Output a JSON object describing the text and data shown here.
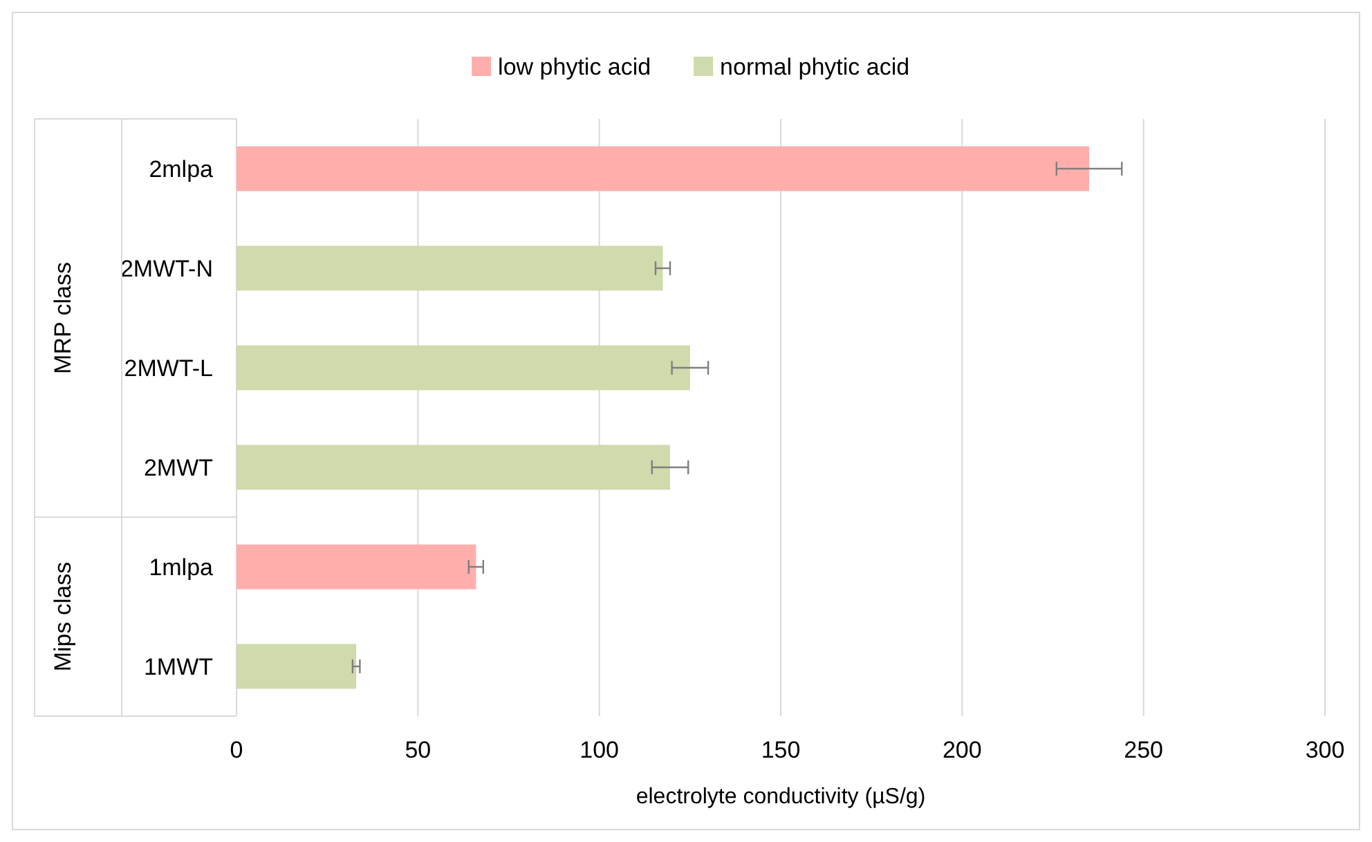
{
  "chart_data": {
    "type": "bar",
    "orientation": "horizontal",
    "xlabel": "electrolyte conductivity (µS/g)",
    "categories": [
      "2mlpa",
      "2MWT-N",
      "2MWT-L",
      "2MWT",
      "1mlpa",
      "1MWT"
    ],
    "series": [
      {
        "name": "low phytic acid",
        "color": "#ffaeac",
        "values": [
          235,
          null,
          null,
          null,
          66,
          null
        ],
        "errors": [
          9,
          null,
          null,
          null,
          2,
          null
        ]
      },
      {
        "name": "normal phytic acid",
        "color": "#cfdaad",
        "values": [
          null,
          117.5,
          125,
          119.5,
          null,
          33
        ],
        "errors": [
          null,
          2,
          5,
          5,
          null,
          1
        ]
      }
    ],
    "xlim": [
      0,
      300
    ],
    "xticks": [
      0,
      50,
      100,
      150,
      200,
      250,
      300
    ],
    "grid": "x",
    "legend": "top",
    "annotations": [
      "MRP class",
      "Mips class"
    ]
  }
}
